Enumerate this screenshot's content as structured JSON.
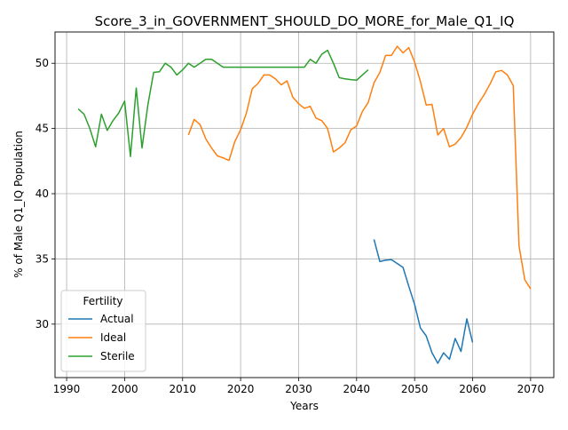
{
  "chart_data": {
    "type": "line",
    "title": "Score_3_in_GOVERNMENT_SHOULD_DO_MORE_for_Male_Q1_IQ",
    "xlabel": "Years",
    "ylabel": "% of Male Q1_IQ Population",
    "xlim": [
      1988,
      2074
    ],
    "ylim": [
      25.9,
      52.4
    ],
    "xticks": [
      1990,
      2000,
      2010,
      2020,
      2030,
      2040,
      2050,
      2060,
      2070
    ],
    "yticks": [
      30,
      35,
      40,
      45,
      50
    ],
    "grid": true,
    "legend": {
      "title": "Fertility",
      "position": "lower-left"
    },
    "series": [
      {
        "name": "Actual",
        "color": "#1f77b4",
        "x": [
          2043,
          2044,
          2045,
          2046,
          2047,
          2048,
          2049,
          2050,
          2051,
          2052,
          2053,
          2054,
          2055,
          2056,
          2057,
          2058,
          2059,
          2060
        ],
        "y": [
          36.5,
          34.8,
          34.9,
          34.95,
          34.65,
          34.35,
          32.9,
          31.5,
          29.7,
          29.1,
          27.8,
          27.0,
          27.8,
          27.3,
          28.9,
          27.9,
          30.4,
          28.6
        ]
      },
      {
        "name": "Ideal",
        "color": "#ff7f0e",
        "x": [
          2011,
          2012,
          2013,
          2014,
          2015,
          2016,
          2017,
          2018,
          2019,
          2020,
          2021,
          2022,
          2023,
          2024,
          2025,
          2026,
          2027,
          2028,
          2029,
          2030,
          2031,
          2032,
          2033,
          2034,
          2035,
          2036,
          2037,
          2038,
          2039,
          2040,
          2041,
          2042,
          2043,
          2044,
          2045,
          2046,
          2047,
          2048,
          2049,
          2050,
          2051,
          2052,
          2053,
          2054,
          2055,
          2056,
          2057,
          2058,
          2059,
          2060,
          2061,
          2062,
          2063,
          2064,
          2065,
          2066,
          2067,
          2068,
          2069,
          2070
        ],
        "y": [
          44.5,
          45.7,
          45.3,
          44.2,
          43.5,
          42.9,
          42.75,
          42.55,
          44.0,
          44.9,
          46.2,
          48.05,
          48.45,
          49.1,
          49.1,
          48.8,
          48.35,
          48.65,
          47.4,
          46.9,
          46.55,
          46.7,
          45.8,
          45.6,
          45.0,
          43.2,
          43.5,
          43.9,
          44.9,
          45.2,
          46.3,
          47.0,
          48.5,
          49.3,
          50.6,
          50.6,
          51.3,
          50.8,
          51.2,
          50.1,
          48.6,
          46.8,
          46.85,
          44.5,
          45.0,
          43.6,
          43.8,
          44.3,
          45.1,
          46.1,
          46.9,
          47.6,
          48.4,
          49.35,
          49.45,
          49.1,
          48.3,
          36.0,
          33.4,
          32.7
        ]
      },
      {
        "name": "Sterile",
        "color": "#2ca02c",
        "x": [
          1992,
          1993,
          1994,
          1995,
          1996,
          1997,
          1998,
          1999,
          2000,
          2001,
          2002,
          2003,
          2004,
          2005,
          2006,
          2007,
          2008,
          2009,
          2010,
          2011,
          2012,
          2013,
          2014,
          2015,
          2016,
          2017,
          2018,
          2019,
          2020,
          2021,
          2022,
          2023,
          2024,
          2025,
          2026,
          2027,
          2028,
          2029,
          2030,
          2031,
          2032,
          2033,
          2034,
          2035,
          2036,
          2037,
          2038,
          2039,
          2040,
          2041,
          2042
        ],
        "y": [
          46.5,
          46.1,
          45.0,
          43.6,
          46.1,
          44.85,
          45.6,
          46.2,
          47.1,
          42.85,
          48.1,
          43.5,
          46.8,
          49.3,
          49.35,
          50.0,
          49.7,
          49.1,
          49.5,
          50.0,
          49.7,
          50.0,
          50.3,
          50.3,
          50.0,
          49.7,
          49.7,
          49.7,
          49.7,
          49.7,
          49.7,
          49.7,
          49.7,
          49.7,
          49.7,
          49.7,
          49.7,
          49.7,
          49.7,
          49.7,
          50.3,
          50.0,
          50.7,
          51.0,
          50.0,
          48.9,
          48.8,
          48.75,
          48.7,
          49.1,
          49.5
        ]
      }
    ]
  }
}
